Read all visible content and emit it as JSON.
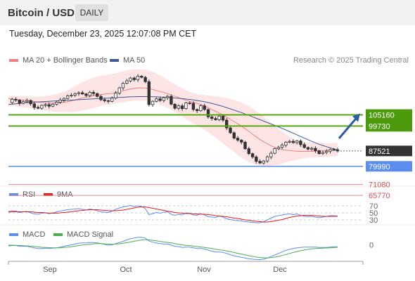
{
  "header": {
    "title": "Bitcoin / USD",
    "period": "DAILY",
    "timestamp": "Tuesday, December 23, 2025 12:07:08 PM CET",
    "credit": "Research © 2025 Trading Central"
  },
  "legends": {
    "ma_bb": "MA 20 + Bollinger Bands",
    "ma50": "MA 50",
    "rsi": "RSI",
    "rsi_ma": "9MA",
    "macd": "MACD",
    "macd_signal": "MACD Signal"
  },
  "colors": {
    "ma20": "#f08080",
    "ma50": "#3c5a96",
    "bb_fill": "#fde0e0",
    "candle": "#333333",
    "resistance": "#5aa80a",
    "support": "#5b8def",
    "target_lines": "#e58a8a",
    "arrow": "#2e5aa8",
    "current_price_bg": "#333333",
    "rsi": "#5b8def",
    "rsi_ma": "#e41a1c",
    "macd": "#5b8def",
    "macd_signal": "#4caf50"
  },
  "chart_data": [
    {
      "type": "candlestick",
      "title": "Bitcoin / USD",
      "x_labels": [
        "Sep",
        "Oct",
        "Nov",
        "Dec"
      ],
      "price_levels": {
        "resistance": [
          "105160",
          "99730"
        ],
        "current": "87521",
        "support": "79990",
        "targets": [
          "71080",
          "65770"
        ]
      },
      "close_path": [
        111200,
        112800,
        112400,
        110800,
        111600,
        112200,
        110600,
        108800,
        108400,
        109800,
        110200,
        109400,
        110400,
        111400,
        112400,
        113200,
        114400,
        114800,
        115600,
        116000,
        115400,
        114600,
        116200,
        115600,
        114200,
        112600,
        112100,
        111800,
        113400,
        115800,
        118400,
        120600,
        121800,
        123200,
        122400,
        124100,
        123500,
        121400,
        110200,
        111800,
        113000,
        112200,
        113600,
        114200,
        110400,
        108400,
        109600,
        108200,
        111000,
        110800,
        107800,
        107200,
        109600,
        107800,
        104200,
        103400,
        102800,
        104600,
        102600,
        98800,
        96400,
        93800,
        92800,
        91800,
        88600,
        86200,
        84600,
        82400,
        81600,
        82600,
        84600,
        86400,
        88600,
        89300,
        90400,
        91800,
        92200,
        91600,
        92400,
        90600,
        89200,
        88400,
        88800,
        87600,
        86200,
        86800,
        87400,
        88200,
        88100,
        87521
      ],
      "ma20": [
        113200,
        112900,
        112600,
        112500,
        112400,
        112300,
        112100,
        111700,
        111400,
        111300,
        111100,
        111000,
        110900,
        111000,
        111100,
        111300,
        111600,
        112000,
        112500,
        113000,
        113400,
        113800,
        114200,
        114600,
        114900,
        115100,
        115300,
        115500,
        115700,
        116100,
        116500,
        117000,
        117400,
        117800,
        118100,
        118300,
        118400,
        118300,
        118000,
        117600,
        117100,
        116600,
        116100,
        115600,
        114900,
        114200,
        113600,
        112900,
        112300,
        111800,
        111300,
        110800,
        110200,
        109500,
        108700,
        107800,
        106900,
        106000,
        105100,
        104100,
        103000,
        101900,
        100800,
        99600,
        98400,
        97100,
        95700,
        94400,
        93100,
        92000,
        91000,
        90100,
        89300,
        88600,
        88200,
        87900,
        87700,
        87500,
        87400,
        87300,
        87300,
        87300,
        87300,
        87400,
        87500,
        87600,
        87700,
        87800,
        87900,
        88000
      ],
      "ma50": [
        110200,
        110400,
        110600,
        110800,
        111000,
        111200,
        111300,
        111400,
        111500,
        111600,
        111700,
        111800,
        111900,
        112000,
        112100,
        112200,
        112300,
        112400,
        112500,
        112600,
        112700,
        112800,
        112900,
        113000,
        113100,
        113200,
        113300,
        113400,
        113500,
        113600,
        113700,
        113800,
        113900,
        114000,
        114000,
        114100,
        114100,
        114100,
        114100,
        114000,
        114000,
        113900,
        113800,
        113700,
        113600,
        113400,
        113300,
        113100,
        112900,
        112700,
        112500,
        112200,
        111900,
        111600,
        111200,
        110800,
        110300,
        109800,
        109300,
        108700,
        108100,
        107500,
        106900,
        106300,
        105600,
        104900,
        104200,
        103500,
        102800,
        102100,
        101400,
        100700,
        100000,
        99300,
        98500,
        97800,
        97000,
        96200,
        95400,
        94600,
        93800,
        93000,
        92200,
        91500,
        90800,
        90200,
        89600,
        89000,
        88500,
        88000
      ],
      "bb_upper": [
        114500,
        114500,
        114400,
        114400,
        114300,
        114300,
        114200,
        114100,
        114100,
        114200,
        114400,
        114700,
        115000,
        115400,
        115900,
        116500,
        117300,
        118200,
        119200,
        120200,
        121200,
        122100,
        122800,
        123400,
        123900,
        124300,
        124600,
        124900,
        125200,
        125600,
        126000,
        126500,
        126900,
        127200,
        127400,
        127500,
        127400,
        127200,
        126800,
        126200,
        125400,
        124500,
        123500,
        122400,
        121300,
        120200,
        119200,
        118200,
        117300,
        116500,
        115900,
        115400,
        115100,
        114900,
        114700,
        114500,
        114300,
        114000,
        113700,
        113400,
        113000,
        112500,
        111900,
        111200,
        110400,
        109400,
        108300,
        107100,
        105800,
        104300,
        102800,
        101300,
        99800,
        98300,
        96900,
        95600,
        94500,
        93500,
        92700,
        92100,
        91800,
        91600,
        91500,
        91400,
        91400,
        91400,
        91400,
        91400,
        91300,
        91300
      ],
      "bb_lower": [
        109900,
        109600,
        109400,
        109100,
        108900,
        108600,
        108300,
        107900,
        107700,
        107500,
        107300,
        107000,
        106800,
        106700,
        106600,
        106500,
        106500,
        106600,
        106700,
        106900,
        107200,
        107600,
        108000,
        108500,
        109000,
        109500,
        109900,
        110200,
        110500,
        110800,
        111000,
        111300,
        111600,
        111800,
        112000,
        112100,
        112200,
        112100,
        111900,
        111500,
        111000,
        110400,
        109600,
        108700,
        107700,
        106600,
        105500,
        104300,
        103100,
        102000,
        101000,
        100000,
        99000,
        97900,
        96700,
        95400,
        94000,
        92600,
        91200,
        89800,
        88400,
        87000,
        85500,
        84200,
        83100,
        82000,
        81300,
        80800,
        80400,
        80200,
        80200,
        80300,
        80500,
        80900,
        81400,
        81900,
        82400,
        82900,
        83300,
        83700,
        84000,
        84200,
        84300,
        84400,
        84500,
        84600,
        84700,
        84800,
        84900,
        85000
      ],
      "ylim": [
        72000,
        127000
      ]
    },
    {
      "type": "line",
      "title": "RSI",
      "levels": [
        "70",
        "50",
        "30"
      ],
      "ylim": [
        20,
        80
      ],
      "series": [
        {
          "name": "RSI",
          "values": [
            54,
            56,
            55,
            51,
            53,
            54,
            50,
            47,
            46,
            49,
            50,
            48,
            50,
            53,
            55,
            57,
            59,
            60,
            61,
            62,
            60,
            58,
            61,
            59,
            56,
            53,
            52,
            51,
            55,
            60,
            64,
            67,
            69,
            71,
            68,
            70,
            68,
            62,
            45,
            48,
            51,
            49,
            52,
            53,
            46,
            43,
            46,
            44,
            50,
            49,
            44,
            43,
            48,
            44,
            39,
            38,
            37,
            41,
            38,
            33,
            31,
            29,
            28,
            27,
            25,
            24,
            23,
            22,
            22,
            25,
            30,
            35,
            40,
            42,
            44,
            46,
            47,
            45,
            47,
            43,
            40,
            39,
            40,
            38,
            36,
            38,
            40,
            42,
            42,
            41
          ]
        },
        {
          "name": "9MA",
          "values": [
            52,
            53,
            53,
            53,
            53,
            53,
            53,
            52,
            51,
            51,
            50,
            49,
            49,
            49,
            50,
            51,
            52,
            53,
            55,
            56,
            57,
            58,
            59,
            59,
            59,
            58,
            57,
            56,
            56,
            56,
            57,
            58,
            60,
            62,
            64,
            66,
            67,
            67,
            65,
            63,
            61,
            59,
            57,
            55,
            53,
            51,
            50,
            49,
            48,
            48,
            47,
            47,
            46,
            46,
            45,
            44,
            42,
            41,
            40,
            39,
            37,
            35,
            34,
            32,
            30,
            29,
            27,
            26,
            25,
            24,
            24,
            25,
            27,
            29,
            31,
            34,
            37,
            39,
            41,
            42,
            43,
            43,
            43,
            42,
            41,
            40,
            40,
            40,
            40,
            40
          ]
        }
      ]
    },
    {
      "type": "line",
      "title": "MACD",
      "levels": [
        "0"
      ],
      "ylim": [
        -4000,
        2500
      ],
      "series": [
        {
          "name": "MACD",
          "values": [
            -300,
            -200,
            -200,
            -400,
            -400,
            -400,
            -600,
            -800,
            -1000,
            -1000,
            -900,
            -1000,
            -900,
            -800,
            -600,
            -400,
            -200,
            0,
            200,
            400,
            500,
            500,
            600,
            600,
            500,
            300,
            100,
            -100,
            0,
            300,
            600,
            900,
            1300,
            1600,
            1800,
            2000,
            2000,
            1800,
            1000,
            700,
            500,
            300,
            200,
            200,
            -100,
            -400,
            -500,
            -700,
            -600,
            -600,
            -800,
            -1000,
            -1000,
            -1100,
            -1400,
            -1700,
            -1900,
            -1900,
            -2000,
            -2300,
            -2600,
            -2900,
            -3100,
            -3300,
            -3500,
            -3700,
            -3800,
            -3900,
            -3900,
            -3800,
            -3500,
            -3100,
            -2700,
            -2300,
            -1900,
            -1500,
            -1200,
            -1000,
            -800,
            -700,
            -600,
            -600,
            -600,
            -600,
            -700,
            -700,
            -700,
            -600,
            -500,
            -500
          ]
        },
        {
          "name": "MACD Signal",
          "values": [
            -100,
            -100,
            -150,
            -200,
            -250,
            -300,
            -350,
            -450,
            -550,
            -650,
            -700,
            -750,
            -800,
            -800,
            -780,
            -720,
            -620,
            -500,
            -360,
            -200,
            -70,
            50,
            150,
            250,
            300,
            300,
            260,
            190,
            150,
            190,
            280,
            400,
            550,
            730,
            920,
            1110,
            1270,
            1370,
            1300,
            1190,
            1060,
            910,
            760,
            640,
            490,
            300,
            140,
            -30,
            -150,
            -240,
            -350,
            -480,
            -580,
            -690,
            -830,
            -1000,
            -1180,
            -1330,
            -1460,
            -1630,
            -1820,
            -2030,
            -2250,
            -2460,
            -2670,
            -2880,
            -3060,
            -3230,
            -3360,
            -3450,
            -3470,
            -3400,
            -3260,
            -3070,
            -2830,
            -2570,
            -2300,
            -2040,
            -1790,
            -1570,
            -1380,
            -1220,
            -1090,
            -990,
            -930,
            -880,
            -840,
            -790,
            -730,
            -680
          ]
        }
      ]
    }
  ]
}
